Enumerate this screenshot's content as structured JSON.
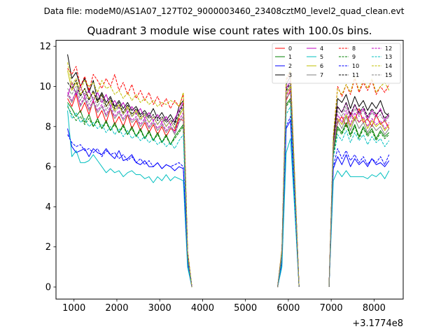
{
  "figure": {
    "suptitle": "Data file: modeM0/AS1A07_127T02_9000003460_23408cztM0_level2_quad_clean.evt"
  },
  "chart_data": {
    "type": "line",
    "title": "Quadrant 3 module wise count rates with 100.0s bins.",
    "xlabel": "",
    "ylabel": "",
    "offset_text": "+3.1774e8",
    "xlim": [
      580,
      8680
    ],
    "ylim": [
      -0.6,
      12.3
    ],
    "xticks": [
      1000,
      2000,
      3000,
      4000,
      5000,
      6000,
      7000,
      8000
    ],
    "xtick_labels": [
      "1000",
      "2000",
      "3000",
      "4000",
      "5000",
      "6000",
      "7000",
      "8000"
    ],
    "yticks": [
      0,
      2,
      4,
      6,
      8,
      10,
      12
    ],
    "ytick_labels": [
      "0",
      "2",
      "4",
      "6",
      "8",
      "10",
      "12"
    ],
    "grid": false,
    "legend_position": "top-right",
    "x_segment_1": [
      850,
      950,
      1050,
      1150,
      1250,
      1350,
      1450,
      1550,
      1650,
      1750,
      1850,
      1950,
      2050,
      2150,
      2250,
      2350,
      2450,
      2550,
      2650,
      2750,
      2850,
      2950,
      3050,
      3150,
      3250,
      3350,
      3450,
      3550,
      3650,
      3750
    ],
    "x_segment_2": [
      5750,
      5850,
      5950,
      6050,
      6150,
      6250
    ],
    "x_segment_3": [
      6950,
      7050,
      7150,
      7250,
      7350,
      7450,
      7550,
      7650,
      7750,
      7850,
      7950,
      8050,
      8150,
      8250,
      8350
    ],
    "series": [
      {
        "name": "0",
        "color": "#ff0000",
        "dash": false,
        "seg1": [
          9.4,
          9.0,
          9.6,
          8.7,
          9.2,
          8.6,
          9.3,
          8.4,
          8.8,
          8.2,
          8.9,
          8.1,
          8.5,
          8.0,
          8.6,
          7.9,
          8.3,
          7.8,
          8.2,
          7.7,
          8.1,
          7.6,
          8.0,
          7.5,
          7.9,
          7.8,
          8.4,
          8.3,
          1.5,
          0
        ],
        "seg2": [
          0,
          1.5,
          9.3,
          9.8,
          5.0,
          0
        ],
        "seg3": [
          0,
          6.9,
          8.2,
          8.5,
          8.0,
          8.7,
          8.3,
          8.9,
          8.2,
          8.4,
          8.0,
          8.6,
          8.1,
          8.3,
          7.9
        ]
      },
      {
        "name": "1",
        "color": "#008000",
        "dash": false,
        "seg1": [
          9.2,
          8.9,
          8.5,
          8.8,
          8.2,
          8.6,
          8.0,
          8.4,
          7.9,
          8.3,
          7.8,
          8.2,
          7.7,
          8.1,
          7.6,
          8.0,
          7.5,
          7.9,
          7.4,
          7.8,
          7.3,
          7.7,
          7.2,
          7.6,
          7.1,
          7.5,
          7.8,
          8.1,
          1.4,
          0
        ],
        "seg2": [
          0,
          1.4,
          9.1,
          9.4,
          4.8,
          0
        ],
        "seg3": [
          0,
          6.7,
          8.0,
          7.7,
          8.2,
          7.6,
          8.1,
          7.5,
          8.0,
          7.6,
          7.9,
          7.4,
          7.8,
          7.5,
          7.7
        ]
      },
      {
        "name": "2",
        "color": "#0000ff",
        "dash": false,
        "seg1": [
          7.9,
          7.0,
          6.7,
          6.8,
          6.9,
          6.5,
          6.9,
          6.7,
          6.6,
          6.9,
          6.6,
          6.4,
          6.8,
          6.3,
          6.4,
          6.6,
          6.2,
          6.1,
          6.3,
          6.0,
          6.0,
          6.2,
          5.9,
          6.1,
          6.0,
          5.8,
          6.0,
          5.9,
          1.2,
          0
        ],
        "seg2": [
          0,
          1.2,
          7.9,
          8.3,
          4.2,
          0
        ],
        "seg3": [
          0,
          5.9,
          6.5,
          6.1,
          6.6,
          6.0,
          6.4,
          6.1,
          6.3,
          6.0,
          6.4,
          6.1,
          6.2,
          6.0,
          6.3
        ]
      },
      {
        "name": "3",
        "color": "#000000",
        "dash": false,
        "seg1": [
          11.6,
          10.4,
          10.7,
          10.0,
          10.4,
          9.7,
          10.3,
          9.3,
          9.7,
          9.2,
          9.5,
          9.0,
          9.3,
          8.9,
          9.2,
          8.8,
          9.0,
          8.6,
          8.8,
          8.5,
          8.9,
          8.4,
          8.7,
          8.3,
          8.6,
          8.2,
          9.0,
          9.3,
          1.7,
          0
        ],
        "seg2": [
          0,
          1.8,
          10.1,
          10.5,
          5.3,
          0
        ],
        "seg3": [
          0,
          7.3,
          9.4,
          9.2,
          9.6,
          8.9,
          9.5,
          9.0,
          9.3,
          8.8,
          9.2,
          8.9,
          9.3,
          8.7,
          8.5
        ]
      },
      {
        "name": "4",
        "color": "#bf00bf",
        "dash": false,
        "seg1": [
          9.5,
          10.2,
          9.6,
          10.0,
          9.5,
          9.8,
          9.3,
          9.7,
          9.2,
          9.6,
          9.0,
          9.3,
          8.9,
          9.2,
          8.7,
          9.0,
          8.6,
          8.9,
          8.4,
          8.7,
          8.3,
          8.6,
          8.2,
          8.5,
          8.1,
          8.4,
          8.8,
          9.2,
          1.6,
          0
        ],
        "seg2": [
          0,
          1.7,
          9.9,
          10.3,
          5.1,
          0
        ],
        "seg3": [
          0,
          7.1,
          9.0,
          8.7,
          9.2,
          8.5,
          9.1,
          8.6,
          8.9,
          8.4,
          8.8,
          8.5,
          8.9,
          8.3,
          8.6
        ]
      },
      {
        "name": "5",
        "color": "#00bfbf",
        "dash": false,
        "seg1": [
          8.8,
          6.5,
          6.8,
          6.2,
          6.2,
          6.3,
          6.6,
          6.3,
          6.0,
          5.7,
          5.9,
          5.7,
          5.8,
          5.5,
          5.7,
          5.8,
          5.6,
          5.6,
          5.4,
          5.5,
          5.2,
          5.5,
          5.3,
          5.6,
          5.3,
          5.5,
          5.4,
          5.3,
          1.0,
          0
        ],
        "seg2": [
          0,
          1.0,
          6.7,
          7.4,
          3.8,
          0
        ],
        "seg3": [
          0,
          5.3,
          5.8,
          5.5,
          5.8,
          5.5,
          5.5,
          5.5,
          5.5,
          5.4,
          5.6,
          5.5,
          5.7,
          5.4,
          5.8
        ]
      },
      {
        "name": "6",
        "color": "#bfbf00",
        "dash": false,
        "seg1": [
          10.8,
          9.8,
          10.2,
          9.6,
          9.9,
          9.4,
          9.7,
          9.2,
          9.6,
          9.0,
          9.3,
          8.8,
          9.1,
          8.6,
          9.0,
          8.5,
          8.8,
          8.4,
          8.6,
          8.2,
          8.5,
          8.1,
          8.4,
          8.0,
          8.3,
          7.9,
          8.5,
          8.9,
          1.6,
          0
        ],
        "seg2": [
          0,
          1.7,
          9.6,
          10.0,
          5.0,
          0
        ],
        "seg3": [
          0,
          7.0,
          8.4,
          8.1,
          8.6,
          8.0,
          8.5,
          8.2,
          8.4,
          7.9,
          8.3,
          8.0,
          8.2,
          7.8,
          8.1
        ]
      },
      {
        "name": "7",
        "color": "#808080",
        "dash": false,
        "seg1": [
          9.6,
          9.2,
          9.8,
          9.0,
          9.4,
          8.8,
          9.2,
          8.7,
          9.0,
          8.5,
          8.9,
          8.4,
          8.7,
          8.3,
          8.6,
          8.2,
          8.4,
          8.0,
          8.3,
          7.9,
          8.2,
          7.8,
          8.1,
          7.7,
          8.0,
          7.6,
          8.2,
          8.5,
          1.5,
          0
        ],
        "seg2": [
          0,
          1.6,
          9.4,
          9.7,
          4.9,
          0
        ],
        "seg3": [
          0,
          6.8,
          8.3,
          7.9,
          8.5,
          7.8,
          8.4,
          7.9,
          8.2,
          7.7,
          8.1,
          7.8,
          8.0,
          7.6,
          7.9
        ]
      },
      {
        "name": "8",
        "color": "#ff0000",
        "dash": true,
        "seg1": [
          10.9,
          10.6,
          11.0,
          10.0,
          10.5,
          9.8,
          10.6,
          10.3,
          9.9,
          10.4,
          10.0,
          10.6,
          9.8,
          10.2,
          9.6,
          10.1,
          9.4,
          9.8,
          9.3,
          9.7,
          9.1,
          9.5,
          9.0,
          9.4,
          8.9,
          9.3,
          9.0,
          9.6,
          1.8,
          0
        ],
        "seg2": [
          0,
          1.9,
          10.3,
          10.7,
          5.4,
          0
        ],
        "seg3": [
          0,
          7.5,
          10.0,
          9.5,
          10.1,
          9.6,
          10.4,
          9.7,
          10.2,
          9.8,
          10.3,
          9.6,
          10.0,
          9.7,
          10.1
        ]
      },
      {
        "name": "9",
        "color": "#008000",
        "dash": true,
        "seg1": [
          9.0,
          8.6,
          8.3,
          8.5,
          8.1,
          8.4,
          8.0,
          8.3,
          7.9,
          8.2,
          7.8,
          8.1,
          7.7,
          8.0,
          7.6,
          7.9,
          7.5,
          7.8,
          7.4,
          7.7,
          7.3,
          7.6,
          7.2,
          7.5,
          7.1,
          7.4,
          7.7,
          8.0,
          1.4,
          0
        ],
        "seg2": [
          0,
          1.4,
          9.0,
          9.3,
          4.7,
          0
        ],
        "seg3": [
          0,
          6.6,
          7.9,
          7.6,
          8.1,
          7.5,
          8.0,
          7.4,
          7.9,
          7.5,
          7.8,
          7.3,
          7.7,
          7.4,
          7.6
        ]
      },
      {
        "name": "10",
        "color": "#0000ff",
        "dash": true,
        "seg1": [
          7.6,
          7.2,
          7.0,
          7.1,
          6.8,
          6.9,
          6.7,
          6.9,
          6.5,
          6.8,
          6.6,
          6.7,
          6.4,
          6.6,
          6.3,
          6.5,
          6.2,
          6.4,
          6.1,
          6.3,
          6.0,
          6.2,
          5.9,
          6.1,
          6.0,
          6.1,
          6.2,
          6.0,
          1.2,
          0
        ],
        "seg2": [
          0,
          1.2,
          8.0,
          8.5,
          4.3,
          0
        ],
        "seg3": [
          0,
          6.0,
          6.9,
          6.4,
          6.8,
          6.3,
          6.6,
          6.2,
          6.5,
          6.1,
          6.4,
          6.2,
          6.5,
          6.1,
          6.6
        ]
      },
      {
        "name": "11",
        "color": "#000000",
        "dash": true,
        "seg1": [
          10.2,
          9.9,
          10.3,
          9.5,
          9.9,
          9.3,
          9.8,
          9.2,
          9.6,
          9.0,
          9.4,
          8.9,
          9.2,
          8.7,
          9.1,
          8.6,
          8.9,
          8.5,
          8.7,
          8.4,
          8.6,
          8.3,
          8.5,
          8.2,
          8.4,
          8.1,
          8.7,
          9.1,
          1.7,
          0
        ],
        "seg2": [
          0,
          1.8,
          9.8,
          10.2,
          5.2,
          0
        ],
        "seg3": [
          0,
          7.2,
          9.0,
          8.7,
          9.2,
          8.6,
          9.1,
          8.7,
          9.0,
          8.5,
          8.9,
          8.6,
          8.8,
          8.4,
          8.7
        ]
      },
      {
        "name": "12",
        "color": "#bf00bf",
        "dash": true,
        "seg1": [
          9.7,
          9.3,
          9.7,
          9.1,
          9.5,
          8.9,
          9.3,
          8.8,
          9.1,
          8.6,
          9.0,
          8.5,
          8.8,
          8.4,
          8.7,
          8.3,
          8.5,
          8.1,
          8.4,
          8.0,
          8.3,
          7.9,
          8.2,
          7.8,
          8.1,
          7.7,
          8.3,
          8.7,
          1.5,
          0
        ],
        "seg2": [
          0,
          1.6,
          9.5,
          9.9,
          5.0,
          0
        ],
        "seg3": [
          0,
          6.9,
          8.6,
          8.2,
          8.8,
          8.1,
          8.7,
          8.2,
          8.5,
          8.0,
          8.4,
          8.1,
          8.3,
          7.9,
          8.2
        ]
      },
      {
        "name": "13",
        "color": "#00bfbf",
        "dash": true,
        "seg1": [
          9.1,
          8.4,
          8.7,
          8.2,
          8.4,
          8.0,
          8.2,
          7.9,
          8.1,
          7.7,
          8.0,
          7.6,
          7.9,
          7.5,
          7.8,
          7.4,
          7.6,
          7.3,
          7.5,
          7.2,
          7.4,
          7.1,
          7.3,
          7.0,
          7.2,
          6.9,
          7.3,
          7.6,
          1.3,
          0
        ],
        "seg2": [
          0,
          1.3,
          8.6,
          9.0,
          4.5,
          0
        ],
        "seg3": [
          0,
          6.4,
          7.6,
          7.3,
          7.8,
          7.2,
          7.7,
          7.3,
          7.6,
          7.1,
          7.5,
          7.2,
          7.4,
          7.0,
          7.3
        ]
      },
      {
        "name": "14",
        "color": "#bfbf00",
        "dash": true,
        "seg1": [
          11.2,
          10.1,
          10.4,
          9.8,
          10.3,
          10.0,
          10.2,
          9.7,
          10.3,
          9.9,
          10.0,
          9.6,
          9.8,
          9.4,
          9.7,
          9.3,
          9.6,
          9.2,
          9.4,
          9.1,
          9.3,
          9.0,
          9.2,
          9.1,
          9.3,
          9.2,
          9.0,
          9.7,
          1.8,
          0
        ],
        "seg2": [
          0,
          1.9,
          10.4,
          10.8,
          5.5,
          0
        ],
        "seg3": [
          0,
          7.6,
          9.9,
          9.6,
          10.1,
          9.7,
          10.5,
          9.8,
          10.3,
          9.9,
          10.4,
          9.7,
          10.0,
          10.2,
          9.8
        ]
      },
      {
        "name": "15",
        "color": "#808080",
        "dash": true,
        "seg1": [
          9.9,
          9.6,
          10.0,
          9.3,
          9.7,
          9.1,
          9.5,
          9.0,
          9.4,
          8.8,
          9.2,
          8.7,
          9.0,
          8.6,
          8.9,
          8.5,
          8.7,
          8.3,
          8.6,
          8.2,
          8.5,
          8.1,
          8.4,
          8.0,
          8.3,
          7.9,
          8.6,
          9.0,
          1.6,
          0
        ],
        "seg2": [
          0,
          1.7,
          9.7,
          10.1,
          5.1,
          0
        ],
        "seg3": [
          0,
          7.0,
          8.8,
          8.5,
          9.0,
          8.4,
          8.9,
          8.5,
          8.8,
          8.3,
          8.7,
          8.4,
          8.6,
          8.2,
          8.5
        ]
      }
    ]
  }
}
